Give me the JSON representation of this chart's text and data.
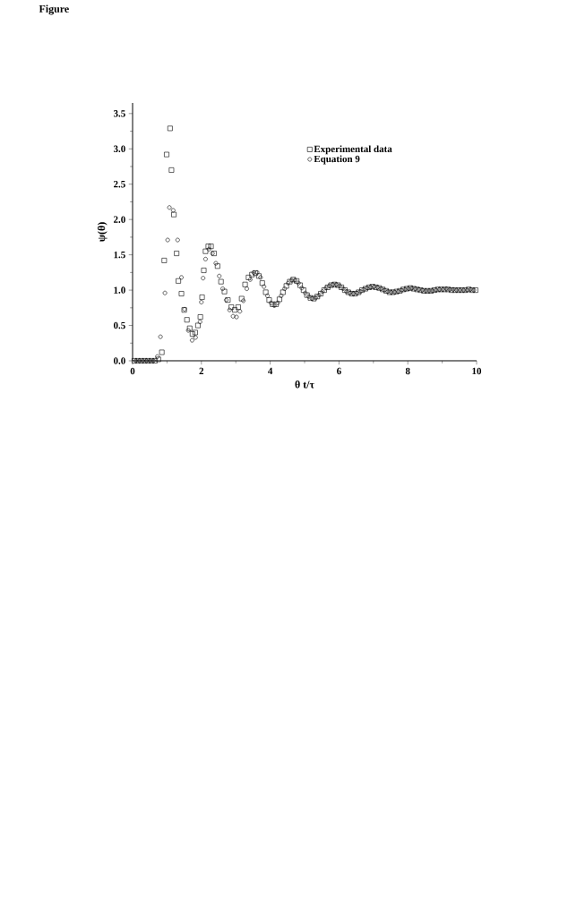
{
  "chart_data": {
    "type": "scatter",
    "xlabel": "θ  t/τ",
    "ylabel": "ψ(θ)",
    "annotations": [
      "Figure"
    ],
    "xlim": [
      0,
      10
    ],
    "ylim": [
      0,
      3.65
    ],
    "xticks": [
      0,
      2,
      4,
      6,
      8,
      10
    ],
    "yticks": [
      {
        "value": 0,
        "label": "0.0"
      },
      {
        "value": 0.5,
        "label": "0.5"
      },
      {
        "value": 1,
        "label": "1.0"
      },
      {
        "value": 1.5,
        "label": "1.5"
      },
      {
        "value": 2,
        "label": "2.0"
      },
      {
        "value": 2.5,
        "label": "2.5"
      },
      {
        "value": 3,
        "label": "3.0"
      },
      {
        "value": 3.5,
        "label": "3.5"
      }
    ],
    "legend": "top right",
    "grid": false,
    "series": [
      {
        "name": "Experimental data",
        "color": "#000000",
        "marker": "square",
        "x": [
          0.05,
          0.15,
          0.25,
          0.35,
          0.45,
          0.55,
          0.65,
          0.75,
          0.85,
          0.92,
          0.99,
          1.09,
          1.13,
          1.2,
          1.28,
          1.33,
          1.42,
          1.5,
          1.58,
          1.66,
          1.74,
          1.82,
          1.9,
          1.97,
          2.02,
          2.07,
          2.12,
          2.2,
          2.28,
          2.37,
          2.47,
          2.57,
          2.67,
          2.77,
          2.87,
          2.97,
          3.07,
          3.17,
          3.27,
          3.37,
          3.47,
          3.57,
          3.67,
          3.77,
          3.87,
          3.97,
          4.07,
          4.17,
          4.27,
          4.37,
          4.47,
          4.57,
          4.67,
          4.77,
          4.87,
          4.97,
          5.07,
          5.17,
          5.27,
          5.37,
          5.47,
          5.57,
          5.67,
          5.77,
          5.87,
          5.97,
          6.07,
          6.17,
          6.27,
          6.37,
          6.47,
          6.57,
          6.67,
          6.77,
          6.87,
          6.97,
          7.07,
          7.17,
          7.27,
          7.37,
          7.47,
          7.57,
          7.67,
          7.77,
          7.87,
          7.97,
          8.07,
          8.17,
          8.27,
          8.37,
          8.47,
          8.57,
          8.67,
          8.77,
          8.87,
          8.97,
          9.07,
          9.17,
          9.27,
          9.37,
          9.47,
          9.57,
          9.67,
          9.77,
          9.87,
          9.97
        ],
        "values": [
          0,
          0,
          0,
          0,
          0,
          0,
          0,
          0.02,
          0.12,
          1.42,
          2.92,
          3.29,
          2.7,
          2.07,
          1.52,
          1.13,
          0.95,
          0.72,
          0.58,
          0.46,
          0.38,
          0.4,
          0.5,
          0.62,
          0.9,
          1.28,
          1.55,
          1.62,
          1.62,
          1.52,
          1.34,
          1.12,
          0.98,
          0.86,
          0.76,
          0.72,
          0.76,
          0.88,
          1.08,
          1.18,
          1.22,
          1.24,
          1.2,
          1.1,
          0.97,
          0.86,
          0.8,
          0.8,
          0.87,
          0.97,
          1.06,
          1.12,
          1.15,
          1.13,
          1.07,
          1.0,
          0.93,
          0.89,
          0.88,
          0.91,
          0.95,
          1.0,
          1.04,
          1.07,
          1.08,
          1.07,
          1.04,
          1.0,
          0.97,
          0.95,
          0.95,
          0.97,
          1.0,
          1.02,
          1.04,
          1.05,
          1.04,
          1.03,
          1.01,
          0.99,
          0.97,
          0.97,
          0.98,
          0.99,
          1.01,
          1.02,
          1.03,
          1.02,
          1.01,
          1.0,
          0.99,
          0.99,
          0.99,
          1.0,
          1.01,
          1.01,
          1.01,
          1.01,
          1.0,
          1.0,
          1.0,
          1.0,
          1.0,
          1.01,
          1.0,
          1.0
        ]
      },
      {
        "name": "Equation 9",
        "color": "#000000",
        "marker": "circle",
        "x": [
          0.1,
          0.2,
          0.3,
          0.4,
          0.5,
          0.6,
          0.72,
          0.81,
          0.94,
          1.02,
          1.07,
          1.18,
          1.31,
          1.42,
          1.51,
          1.62,
          1.73,
          1.83,
          1.96,
          2.0,
          2.05,
          2.12,
          2.22,
          2.32,
          2.42,
          2.52,
          2.62,
          2.72,
          2.82,
          2.92,
          3.02,
          3.12,
          3.22,
          3.32,
          3.42,
          3.52,
          3.62,
          3.72,
          3.82,
          3.92,
          4.02,
          4.12,
          4.22,
          4.32,
          4.42,
          4.52,
          4.62,
          4.72,
          4.82,
          4.92,
          5.02,
          5.12,
          5.22,
          5.32,
          5.42,
          5.52,
          5.62,
          5.72,
          5.82,
          5.92,
          6.02,
          6.12,
          6.22,
          6.32,
          6.42,
          6.52,
          6.62,
          6.72,
          6.82,
          6.92,
          7.02,
          7.12,
          7.22,
          7.32,
          7.42,
          7.52,
          7.62,
          7.72,
          7.82,
          7.92,
          8.02,
          8.12,
          8.22,
          8.32,
          8.42,
          8.52,
          8.62,
          8.72,
          8.82,
          8.92,
          9.02,
          9.12,
          9.22,
          9.32,
          9.42,
          9.52,
          9.62,
          9.72,
          9.82,
          9.92
        ],
        "values": [
          0,
          0,
          0,
          0,
          0,
          0,
          0.06,
          0.34,
          0.96,
          1.71,
          2.17,
          2.13,
          1.71,
          1.18,
          0.73,
          0.43,
          0.29,
          0.33,
          0.55,
          0.83,
          1.17,
          1.44,
          1.58,
          1.52,
          1.38,
          1.2,
          1.02,
          0.86,
          0.72,
          0.63,
          0.62,
          0.7,
          0.85,
          1.02,
          1.15,
          1.25,
          1.25,
          1.18,
          1.05,
          0.92,
          0.82,
          0.78,
          0.82,
          0.92,
          1.02,
          1.1,
          1.14,
          1.14,
          1.1,
          1.03,
          0.96,
          0.91,
          0.88,
          0.89,
          0.93,
          0.98,
          1.03,
          1.06,
          1.08,
          1.08,
          1.06,
          1.02,
          0.98,
          0.96,
          0.95,
          0.96,
          0.98,
          1.01,
          1.03,
          1.04,
          1.05,
          1.04,
          1.02,
          1.0,
          0.98,
          0.97,
          0.97,
          0.98,
          1.0,
          1.01,
          1.02,
          1.03,
          1.02,
          1.01,
          1.0,
          0.99,
          0.99,
          0.99,
          1.0,
          1.01,
          1.01,
          1.02,
          1.01,
          1.01,
          1.0,
          1.0,
          1.0,
          1.0,
          1.01,
          1.0
        ]
      }
    ]
  }
}
